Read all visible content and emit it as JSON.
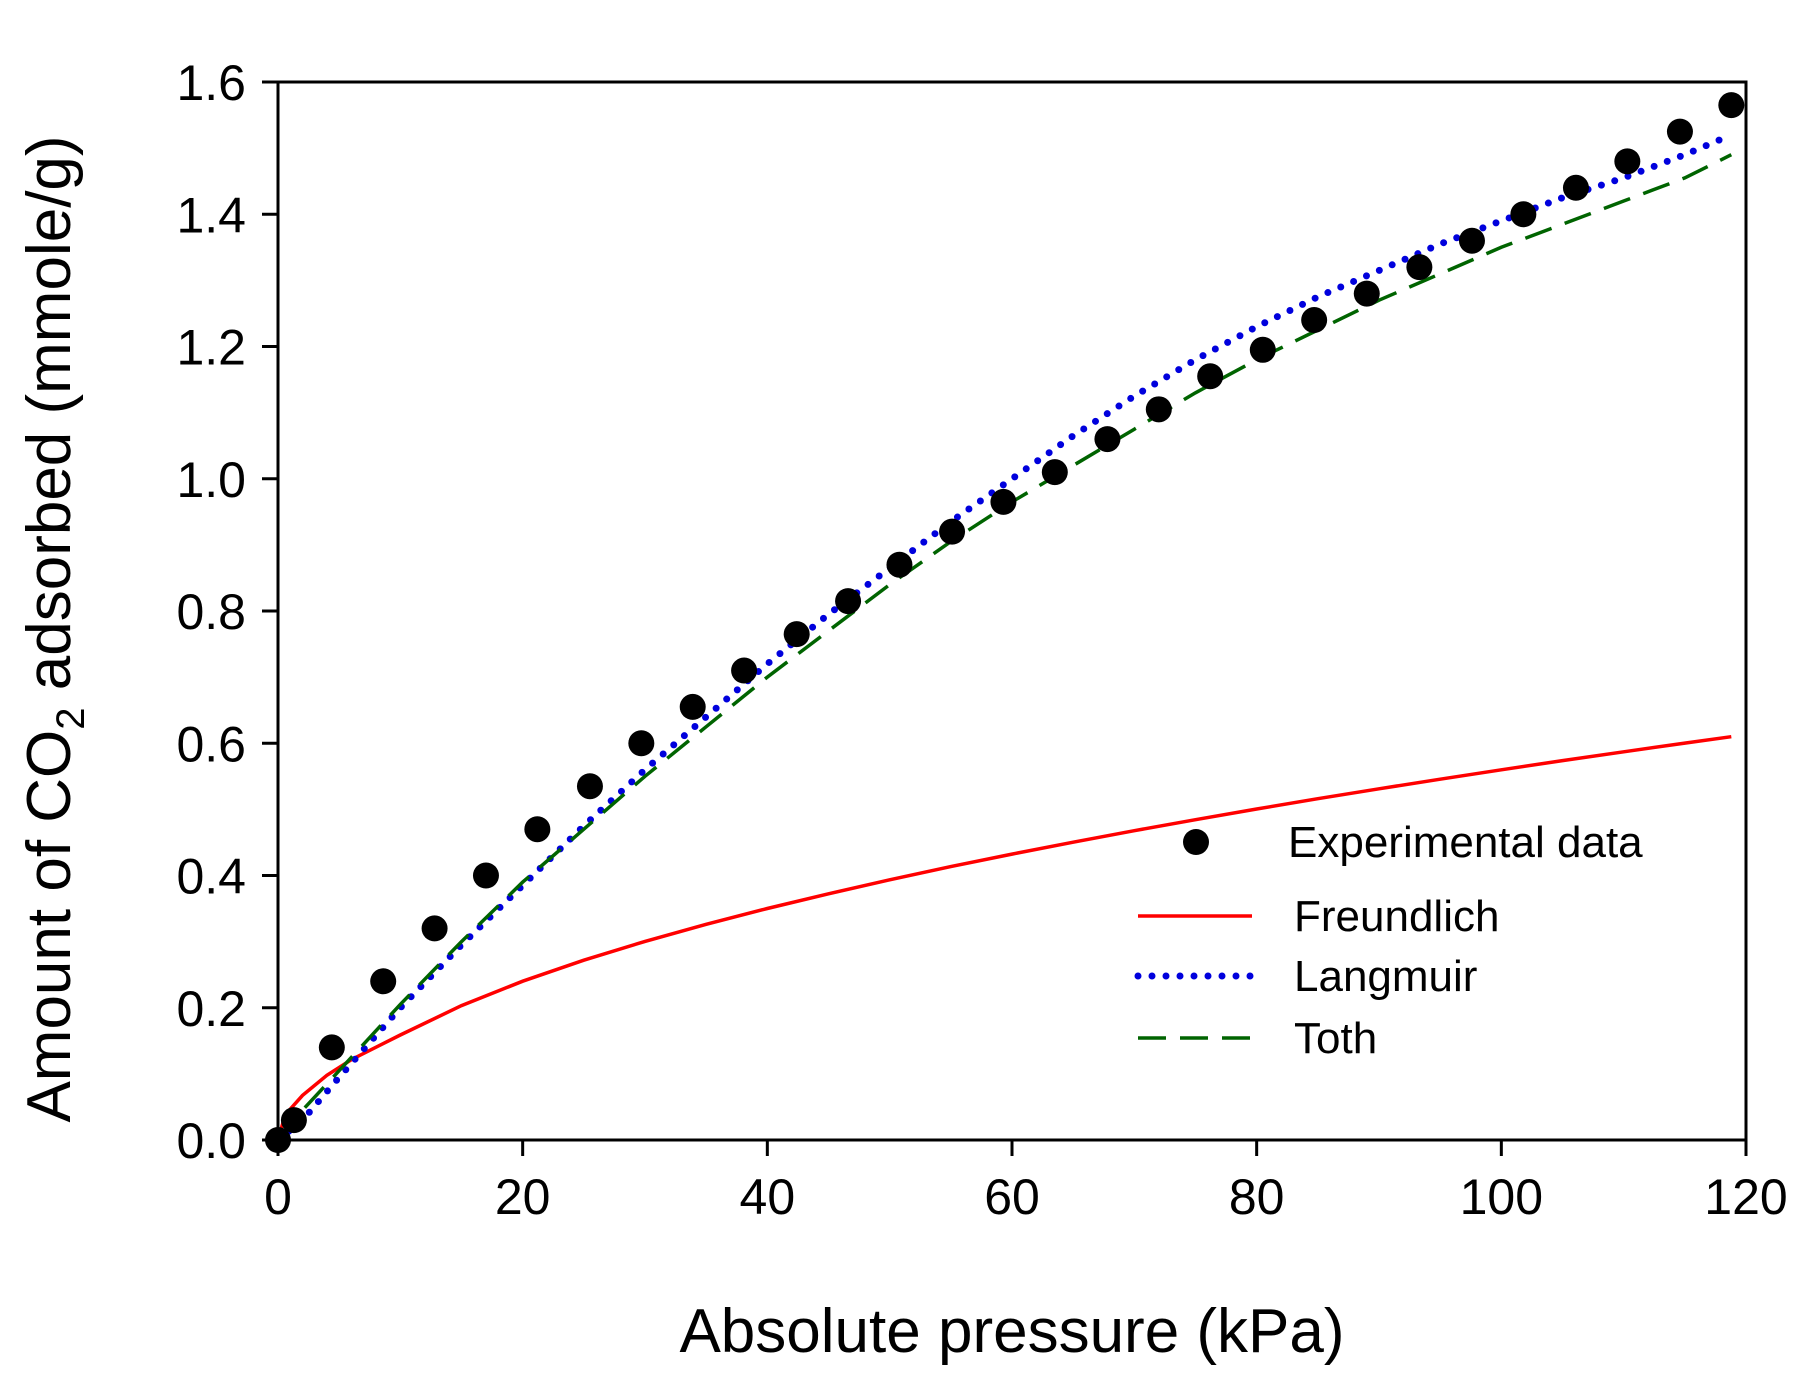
{
  "chart_data": {
    "type": "scatter",
    "xlabel": "Absolute pressure (kPa)",
    "ylabel": {
      "prefix": "Amount of CO",
      "subscript": "2",
      "suffix": " adsorbed (mmole/g)"
    },
    "xlim": [
      0,
      120
    ],
    "ylim": [
      0,
      1.6
    ],
    "x_ticks": [
      "0",
      "20",
      "40",
      "60",
      "80",
      "100",
      "120"
    ],
    "x_tick_values": [
      0,
      20,
      40,
      60,
      80,
      100,
      120
    ],
    "y_ticks": [
      "0.0",
      "0.2",
      "0.4",
      "0.6",
      "0.8",
      "1.0",
      "1.2",
      "1.4",
      "1.6"
    ],
    "y_tick_values": [
      0,
      0.2,
      0.4,
      0.6,
      0.8,
      1.0,
      1.2,
      1.4,
      1.6
    ],
    "grid": false,
    "legend_position": "bottom-right",
    "series": [
      {
        "name": "Experimental data",
        "kind": "markers",
        "color": "#000000",
        "points": [
          [
            0,
            0.0
          ],
          [
            1.3,
            0.03
          ],
          [
            4.4,
            0.14
          ],
          [
            8.6,
            0.24
          ],
          [
            12.8,
            0.32
          ],
          [
            17.0,
            0.4
          ],
          [
            21.2,
            0.47
          ],
          [
            25.5,
            0.535
          ],
          [
            29.7,
            0.6
          ],
          [
            33.9,
            0.655
          ],
          [
            38.1,
            0.71
          ],
          [
            42.4,
            0.765
          ],
          [
            46.6,
            0.815
          ],
          [
            50.8,
            0.87
          ],
          [
            55.1,
            0.92
          ],
          [
            59.3,
            0.965
          ],
          [
            63.5,
            1.01
          ],
          [
            67.8,
            1.06
          ],
          [
            72.0,
            1.105
          ],
          [
            76.2,
            1.155
          ],
          [
            80.5,
            1.195
          ],
          [
            84.7,
            1.24
          ],
          [
            89.0,
            1.28
          ],
          [
            93.3,
            1.32
          ],
          [
            97.6,
            1.36
          ],
          [
            101.8,
            1.4
          ],
          [
            106.1,
            1.44
          ],
          [
            110.3,
            1.48
          ],
          [
            114.6,
            1.525
          ],
          [
            118.8,
            1.565
          ]
        ]
      },
      {
        "name": "Freundlich",
        "kind": "line",
        "color": "#ff0000",
        "style": "solid",
        "points": [
          [
            0,
            0.0
          ],
          [
            0.5,
            0.0322
          ],
          [
            1,
            0.0466
          ],
          [
            2,
            0.0675
          ],
          [
            4,
            0.0979
          ],
          [
            6,
            0.1216
          ],
          [
            10,
            0.1588
          ],
          [
            15,
            0.2032
          ],
          [
            20,
            0.2401
          ],
          [
            25,
            0.2719
          ],
          [
            30,
            0.3003
          ],
          [
            35,
            0.3262
          ],
          [
            40,
            0.3501
          ],
          [
            45,
            0.3724
          ],
          [
            50,
            0.3935
          ],
          [
            55,
            0.4134
          ],
          [
            60,
            0.4323
          ],
          [
            65,
            0.4504
          ],
          [
            70,
            0.4678
          ],
          [
            75,
            0.4844
          ],
          [
            80,
            0.5005
          ],
          [
            85,
            0.5161
          ],
          [
            90,
            0.5311
          ],
          [
            95,
            0.5457
          ],
          [
            100,
            0.5599
          ],
          [
            105,
            0.5737
          ],
          [
            110,
            0.5871
          ],
          [
            115,
            0.6002
          ],
          [
            118.8,
            0.6099
          ]
        ]
      },
      {
        "name": "Langmuir",
        "kind": "line",
        "color": "#0000dd",
        "style": "dotted",
        "points": [
          [
            0,
            0.0
          ],
          [
            2,
            0.03
          ],
          [
            5,
            0.095
          ],
          [
            10,
            0.2
          ],
          [
            15,
            0.295
          ],
          [
            20,
            0.385
          ],
          [
            25,
            0.475
          ],
          [
            30,
            0.56
          ],
          [
            35,
            0.64
          ],
          [
            40,
            0.72
          ],
          [
            45,
            0.795
          ],
          [
            50,
            0.865
          ],
          [
            55,
            0.935
          ],
          [
            60,
            1.0
          ],
          [
            65,
            1.065
          ],
          [
            70,
            1.125
          ],
          [
            75,
            1.18
          ],
          [
            80,
            1.23
          ],
          [
            85,
            1.275
          ],
          [
            90,
            1.315
          ],
          [
            95,
            1.355
          ],
          [
            100,
            1.39
          ],
          [
            105,
            1.425
          ],
          [
            110,
            1.455
          ],
          [
            115,
            1.49
          ],
          [
            118.8,
            1.52
          ]
        ]
      },
      {
        "name": "Toth",
        "kind": "line",
        "color": "#006400",
        "style": "dashed",
        "points": [
          [
            0,
            0.0
          ],
          [
            2,
            0.045
          ],
          [
            5,
            0.105
          ],
          [
            10,
            0.205
          ],
          [
            15,
            0.3
          ],
          [
            20,
            0.39
          ],
          [
            25,
            0.47
          ],
          [
            30,
            0.55
          ],
          [
            35,
            0.625
          ],
          [
            40,
            0.7
          ],
          [
            45,
            0.77
          ],
          [
            50,
            0.84
          ],
          [
            55,
            0.905
          ],
          [
            60,
            0.965
          ],
          [
            65,
            1.02
          ],
          [
            70,
            1.075
          ],
          [
            75,
            1.13
          ],
          [
            80,
            1.18
          ],
          [
            85,
            1.225
          ],
          [
            90,
            1.27
          ],
          [
            95,
            1.31
          ],
          [
            100,
            1.35
          ],
          [
            105,
            1.385
          ],
          [
            110,
            1.42
          ],
          [
            115,
            1.455
          ],
          [
            118.8,
            1.49
          ]
        ]
      }
    ]
  }
}
